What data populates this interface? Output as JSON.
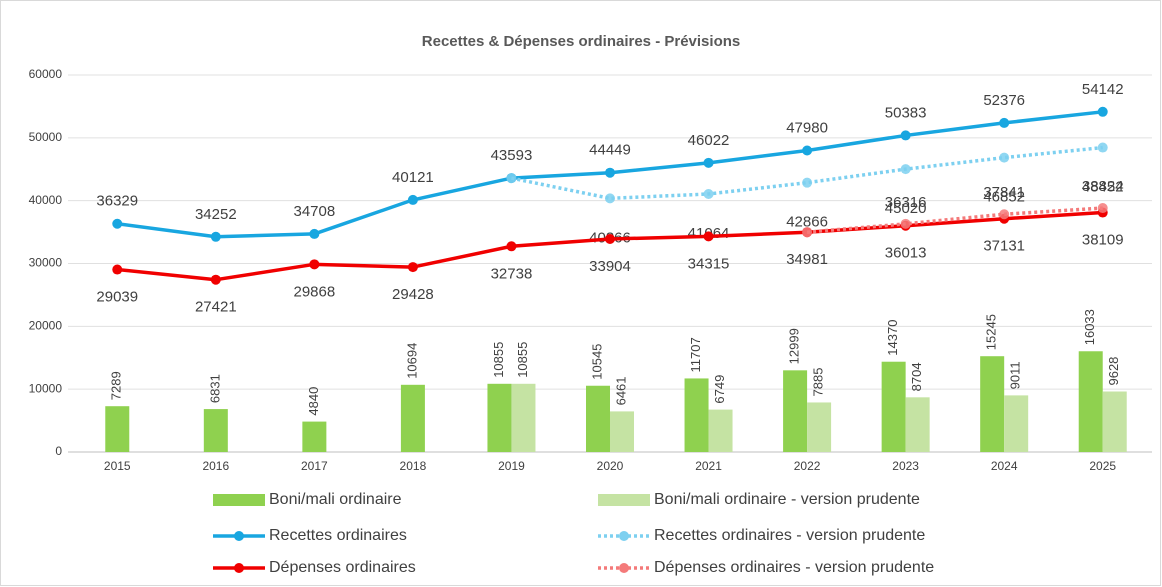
{
  "chart_data": {
    "type": "combo",
    "title": "Recettes & Dépenses ordinaires - Prévisions",
    "categories": [
      "2015",
      "2016",
      "2017",
      "2018",
      "2019",
      "2020",
      "2021",
      "2022",
      "2023",
      "2024",
      "2025"
    ],
    "ylim": [
      0,
      60000
    ],
    "yticks": [
      0,
      10000,
      20000,
      30000,
      40000,
      50000,
      60000
    ],
    "grid": true,
    "series": [
      {
        "name": "Boni/mali ordinaire",
        "kind": "bar",
        "color": "#8fd14f",
        "values": [
          7289,
          6831,
          4840,
          10694,
          10855,
          10545,
          11707,
          12999,
          14370,
          15245,
          16033
        ]
      },
      {
        "name": "Boni/mali ordinaire - version prudente",
        "kind": "bar",
        "color": "#c5e3a3",
        "values": [
          null,
          null,
          null,
          null,
          10855,
          6461,
          6749,
          7885,
          8704,
          9011,
          9628
        ]
      },
      {
        "name": "Recettes ordinaires",
        "kind": "line",
        "color": "#18a6e0",
        "values": [
          36329,
          34252,
          34708,
          40121,
          43593,
          44449,
          46022,
          47980,
          50383,
          52376,
          54142
        ]
      },
      {
        "name": "Recettes ordinaires - version prudente",
        "kind": "dotted",
        "color": "#7dd0f0",
        "values": [
          null,
          null,
          null,
          null,
          43593,
          40366,
          41064,
          42866,
          45020,
          46852,
          48452
        ],
        "value_labels": [
          null,
          null,
          null,
          null,
          null,
          "40366",
          "41064",
          "42866",
          "45020",
          "46852",
          "48452"
        ]
      },
      {
        "name": "Dépenses ordinaires",
        "kind": "line",
        "color": "#f00000",
        "values": [
          29039,
          27421,
          29868,
          29428,
          32738,
          33904,
          34315,
          34981,
          36013,
          37131,
          38109
        ]
      },
      {
        "name": "Dépenses ordinaires - version prudente",
        "kind": "dotted",
        "color": "#f47a7a",
        "values": [
          null,
          null,
          null,
          null,
          null,
          null,
          null,
          34981,
          36316,
          37841,
          38824
        ],
        "value_labels": [
          null,
          null,
          null,
          null,
          null,
          null,
          null,
          null,
          "36316",
          "37841",
          "38824"
        ]
      }
    ]
  }
}
